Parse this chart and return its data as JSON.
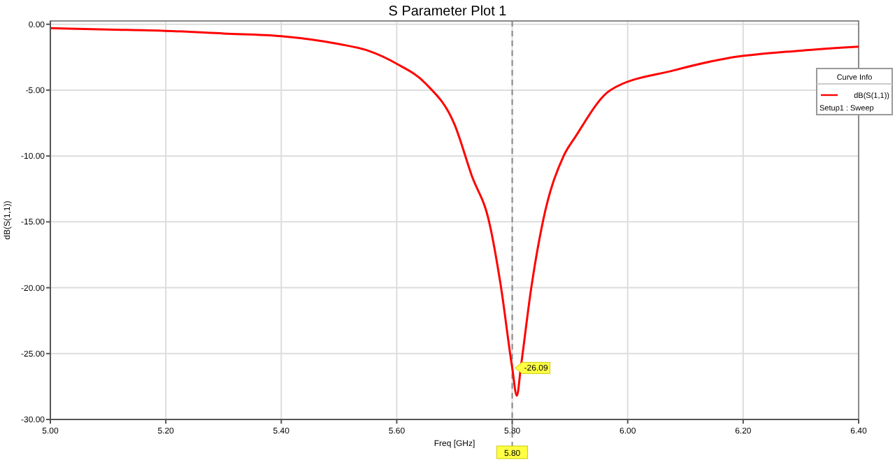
{
  "chart_data": {
    "type": "line",
    "title": "S Parameter Plot 1",
    "xlabel": "Freq [GHz]",
    "ylabel": "dB(S(1,1))",
    "legend_title": "Curve Info",
    "legend": "top right",
    "grid": true,
    "marker": "none",
    "line_style": "solid",
    "x": [
      5.0,
      5.1,
      5.2,
      5.3,
      5.4,
      5.5,
      5.55,
      5.6,
      5.65,
      5.7,
      5.73,
      5.76,
      5.78,
      5.8,
      5.808,
      5.815,
      5.833,
      5.853,
      5.889,
      5.91,
      5.97,
      6.08,
      6.17,
      6.3,
      6.4
    ],
    "series": [
      {
        "name": "dB(S(1,1))",
        "color": "#ff0000",
        "values": [
          -0.3,
          -0.4,
          -0.5,
          -0.7,
          -0.9,
          -1.5,
          -2.0,
          -3.0,
          -4.5,
          -7.6,
          -11.5,
          -15,
          -19.8,
          -26.09,
          -28.2,
          -26,
          -20,
          -15,
          -10,
          -8.5,
          -5,
          -3.5,
          -2.6,
          -2.0,
          -1.7
        ]
      }
    ],
    "xlim": [
      5.0,
      6.4
    ],
    "ylim": [
      -30,
      0.25
    ],
    "xticks": [
      {
        "value": 5.0,
        "label": "5.00"
      },
      {
        "value": 5.2,
        "label": "5.20"
      },
      {
        "value": 5.4,
        "label": "5.40"
      },
      {
        "value": 5.6,
        "label": "5.60"
      },
      {
        "value": 5.8,
        "label": "5.80"
      },
      {
        "value": 6.0,
        "label": "6.00"
      },
      {
        "value": 6.2,
        "label": "6.20"
      },
      {
        "value": 6.4,
        "label": "6.40"
      }
    ],
    "yticks": [
      {
        "value": -30,
        "label": "-30.00"
      },
      {
        "value": -25,
        "label": "-25.00"
      },
      {
        "value": -20,
        "label": "-20.00"
      },
      {
        "value": -15,
        "label": "-15.00"
      },
      {
        "value": -10,
        "label": "-10.00"
      },
      {
        "value": -5,
        "label": "-5.00"
      },
      {
        "value": 0,
        "label": "0.00"
      }
    ],
    "ref_lines": [
      {
        "axis": "x",
        "value": 5.8,
        "label": "5.80",
        "color": "#888888",
        "line_style": "dashed"
      }
    ],
    "annotations": [
      {
        "text": "-26.09",
        "x": 5.8,
        "y": -26.09
      },
      "Setup1 : Sweep"
    ]
  }
}
